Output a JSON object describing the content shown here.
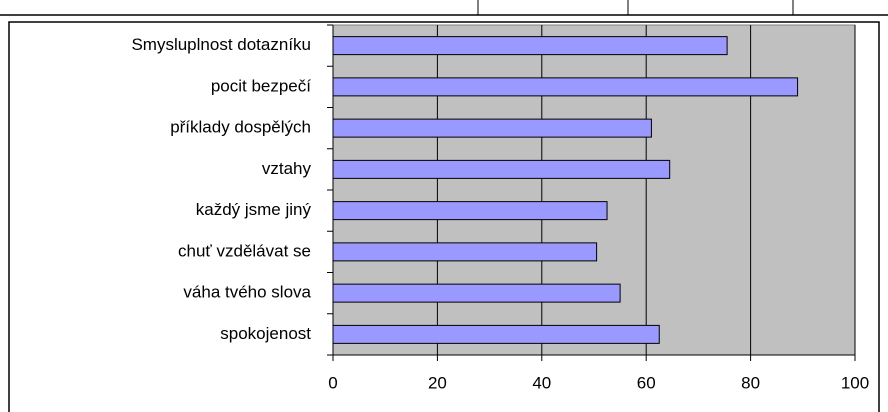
{
  "chart_data": {
    "type": "bar",
    "orientation": "horizontal",
    "categories": [
      "Smysluplnost dotazníku",
      "pocit bezpečí",
      "příklady dospělých",
      "vztahy",
      "každý jsme jiný",
      "chuť vzdělávat se",
      "váha tvého slova",
      "spokojenost"
    ],
    "values": [
      75.5,
      89,
      61,
      64.5,
      52.5,
      50.5,
      55,
      62.5
    ],
    "color": "#9999ff",
    "xlim": [
      0,
      100
    ],
    "xticks": [
      0,
      20,
      40,
      60,
      80,
      100
    ],
    "grid": true
  }
}
